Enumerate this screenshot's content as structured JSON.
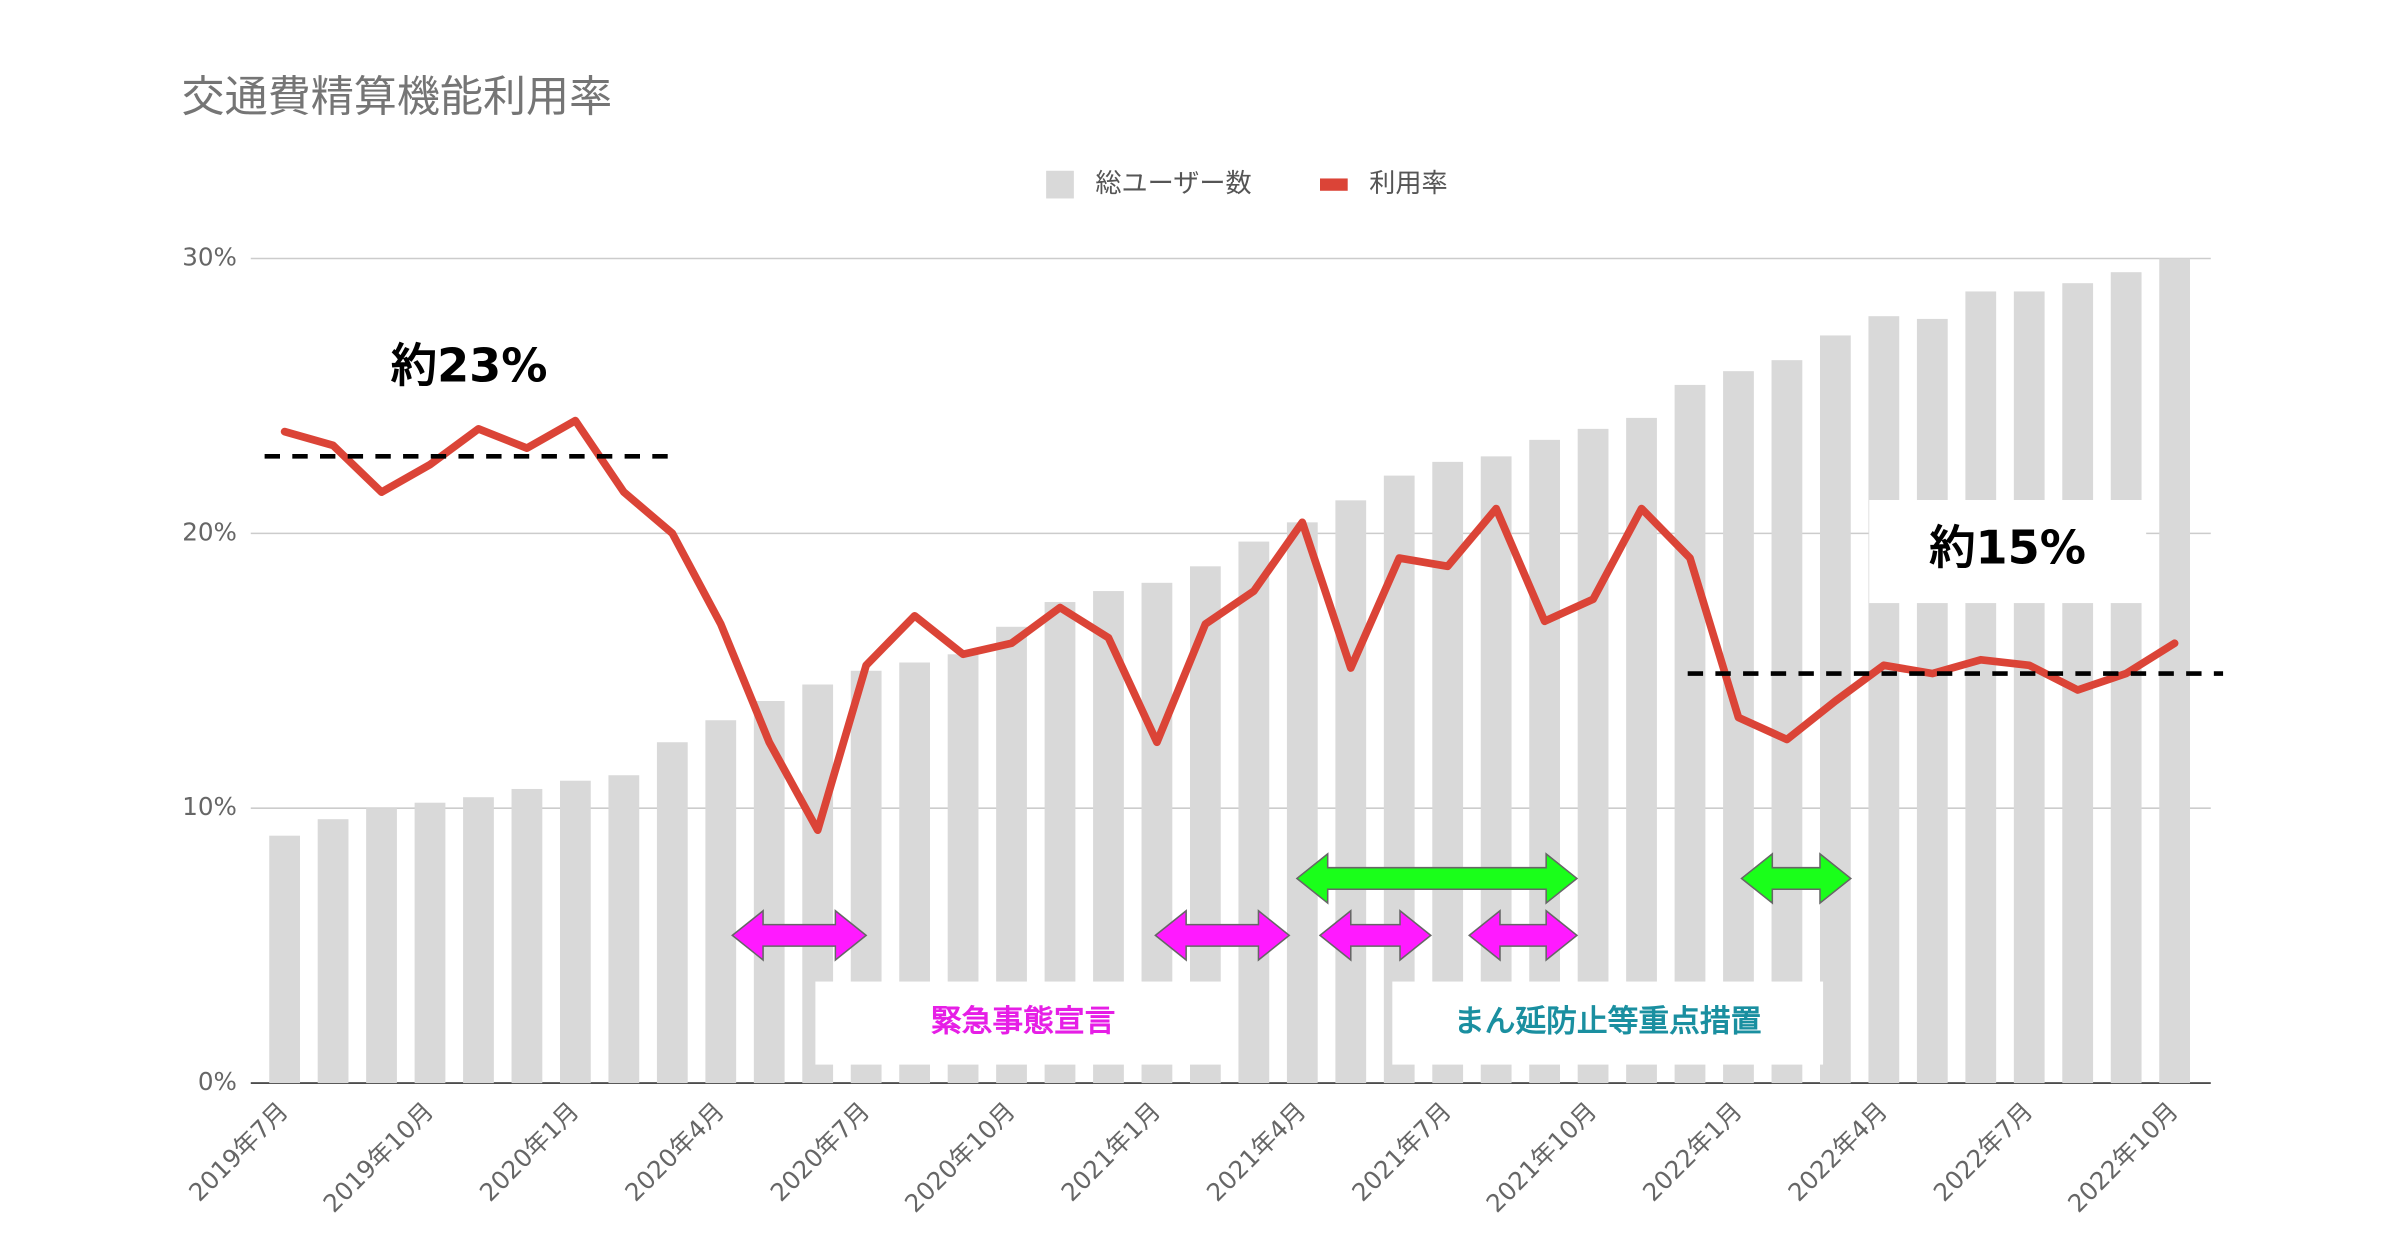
{
  "chart_data": {
    "type": "combo",
    "title": "交通費精算機能利用率",
    "categories": [
      "2019年7月",
      null,
      null,
      "2019年10月",
      null,
      null,
      "2020年1月",
      null,
      null,
      "2020年4月",
      null,
      null,
      "2020年7月",
      null,
      null,
      "2020年10月",
      null,
      null,
      "2021年1月",
      null,
      null,
      "2021年4月",
      null,
      null,
      "2021年7月",
      null,
      null,
      "2021年10月",
      null,
      null,
      "2022年1月",
      null,
      null,
      "2022年4月",
      null,
      null,
      "2022年7月",
      null,
      null,
      "2022年10月"
    ],
    "series": [
      {
        "name": "総ユーザー数",
        "type": "bar",
        "color": "#d9d9d9",
        "values": [
          9.0,
          9.6,
          10.0,
          10.2,
          10.4,
          10.7,
          11.0,
          11.2,
          12.4,
          13.2,
          13.9,
          14.5,
          15.0,
          15.3,
          15.6,
          16.6,
          17.5,
          17.9,
          18.2,
          18.8,
          19.7,
          20.4,
          21.2,
          22.1,
          22.6,
          22.8,
          23.4,
          23.8,
          24.2,
          25.4,
          25.9,
          26.3,
          27.2,
          27.9,
          27.8,
          28.8,
          28.8,
          29.1,
          29.5,
          30.0
        ]
      },
      {
        "name": "利用率",
        "type": "line",
        "color": "#db4437",
        "values": [
          23.7,
          23.2,
          21.5,
          22.5,
          23.8,
          23.1,
          24.1,
          21.5,
          20.0,
          16.7,
          12.4,
          9.2,
          15.2,
          17.0,
          15.6,
          16.0,
          17.3,
          16.2,
          12.4,
          16.7,
          17.9,
          20.4,
          15.1,
          19.1,
          18.8,
          20.9,
          16.8,
          17.6,
          20.9,
          19.1,
          13.3,
          12.5,
          13.9,
          15.2,
          14.9,
          15.4,
          15.2,
          14.3,
          14.9,
          16.0
        ]
      }
    ],
    "ylim": [
      0,
      30
    ],
    "yticks": [
      {
        "value": 0,
        "label": "0%"
      },
      {
        "value": 10,
        "label": "10%"
      },
      {
        "value": 20,
        "label": "20%"
      },
      {
        "value": 30,
        "label": "30%"
      }
    ],
    "grid": true,
    "legend": "top",
    "reference_lines": [
      {
        "label": "約23%",
        "value": 22.8
      },
      {
        "label": "約15%",
        "value": 14.9
      }
    ],
    "periods": [
      "緊急事態宣言",
      "まん延防止等重点措置"
    ]
  }
}
